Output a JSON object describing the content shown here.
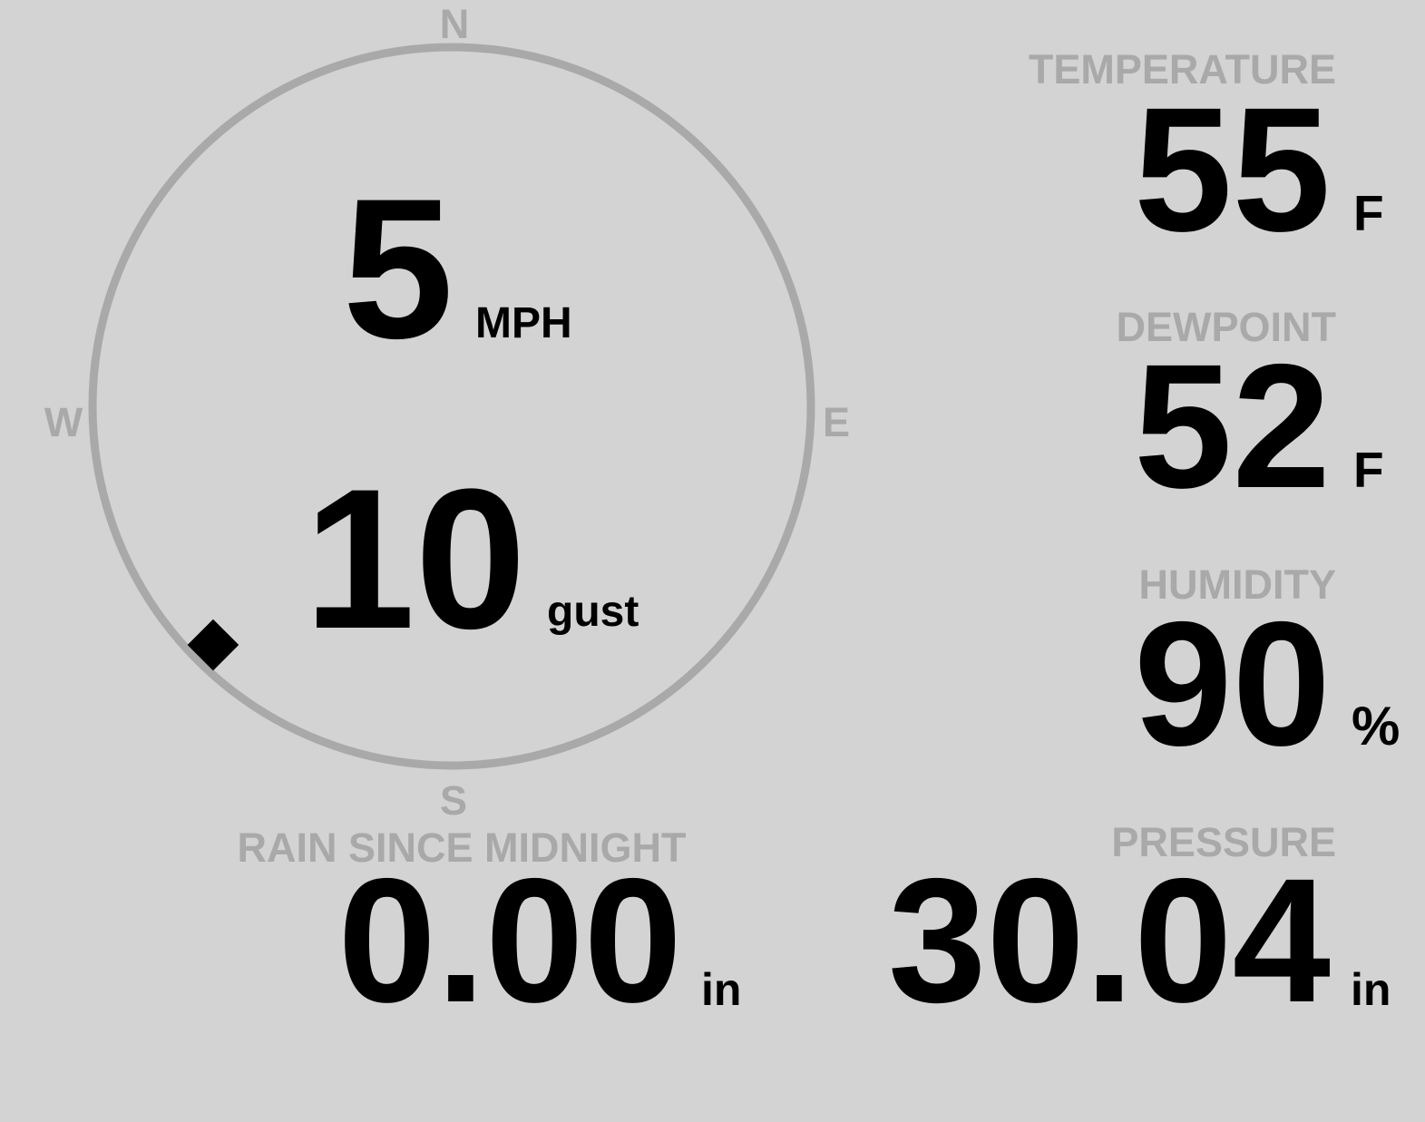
{
  "colors": {
    "background": "#d3d3d3",
    "muted": "#a9a9a9",
    "value": "#000000"
  },
  "wind": {
    "compass": {
      "north": "N",
      "east": "E",
      "south": "S",
      "west": "W"
    },
    "direction_deg": 225,
    "speed": "5",
    "speed_unit": "MPH",
    "gust": "10",
    "gust_unit": "gust"
  },
  "temperature": {
    "label": "TEMPERATURE",
    "value": "55",
    "unit": "F"
  },
  "dewpoint": {
    "label": "DEWPOINT",
    "value": "52",
    "unit": "F"
  },
  "humidity": {
    "label": "HUMIDITY",
    "value": "90",
    "unit": "%"
  },
  "rain": {
    "label": "RAIN SINCE MIDNIGHT",
    "value": "0.00",
    "unit": "in"
  },
  "pressure": {
    "label": "PRESSURE",
    "value": "30.04",
    "unit": "in"
  }
}
